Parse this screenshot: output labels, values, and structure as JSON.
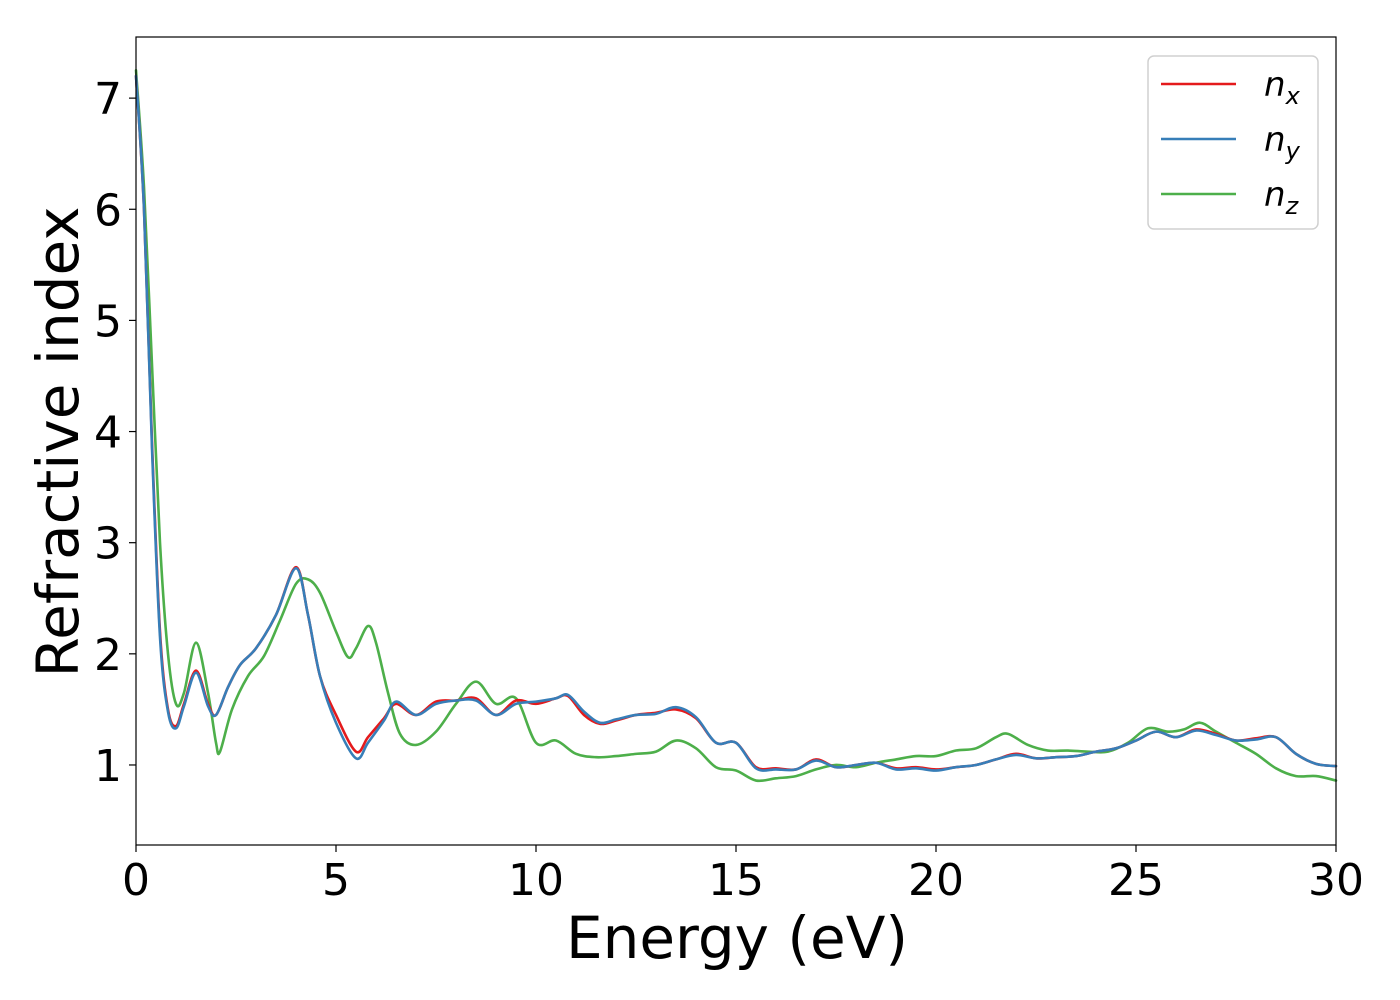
{
  "chart_data": {
    "type": "line",
    "xlabel": "Energy (eV)",
    "ylabel": "Refractive index",
    "xlim": [
      0,
      30
    ],
    "ylim": [
      0.28,
      7.55
    ],
    "xticks": [
      "0",
      "5",
      "10",
      "15",
      "20",
      "25",
      "30"
    ],
    "yticks": [
      "1",
      "2",
      "3",
      "4",
      "5",
      "6",
      "7"
    ],
    "grid": false,
    "legend_position": "top-right",
    "series": [
      {
        "name": "n_x",
        "label_base": "n",
        "label_sub": "x",
        "color": "#e41a1c",
        "x": [
          0,
          0.2,
          0.4,
          0.6,
          0.8,
          1.0,
          1.2,
          1.5,
          1.8,
          2.0,
          2.3,
          2.6,
          3.0,
          3.5,
          4.0,
          4.3,
          4.6,
          5.0,
          5.5,
          5.8,
          6.2,
          6.5,
          7.0,
          7.5,
          8.0,
          8.5,
          9.0,
          9.5,
          10.0,
          10.5,
          10.8,
          11.2,
          11.6,
          12.0,
          12.5,
          13.0,
          13.5,
          14.0,
          14.5,
          15.0,
          15.5,
          16.0,
          16.5,
          17.0,
          17.5,
          18.0,
          18.5,
          19.0,
          19.5,
          20.0,
          20.5,
          21.0,
          21.5,
          22.0,
          22.5,
          23.0,
          23.5,
          24.0,
          24.5,
          25.0,
          25.5,
          26.0,
          26.5,
          27.0,
          27.5,
          28.0,
          28.5,
          29.0,
          29.5,
          30.0
        ],
        "y": [
          7.2,
          6.0,
          3.9,
          2.2,
          1.5,
          1.35,
          1.55,
          1.85,
          1.55,
          1.45,
          1.7,
          1.9,
          2.05,
          2.35,
          2.78,
          2.35,
          1.8,
          1.45,
          1.12,
          1.25,
          1.42,
          1.55,
          1.45,
          1.57,
          1.58,
          1.6,
          1.45,
          1.58,
          1.55,
          1.6,
          1.62,
          1.45,
          1.37,
          1.4,
          1.45,
          1.47,
          1.5,
          1.42,
          1.2,
          1.2,
          0.98,
          0.97,
          0.96,
          1.05,
          0.98,
          1.0,
          1.02,
          0.97,
          0.98,
          0.96,
          0.98,
          1.0,
          1.05,
          1.1,
          1.06,
          1.07,
          1.08,
          1.12,
          1.15,
          1.22,
          1.3,
          1.25,
          1.32,
          1.28,
          1.22,
          1.24,
          1.25,
          1.1,
          1.01,
          0.99
        ]
      },
      {
        "name": "n_y",
        "label_base": "n",
        "label_sub": "y",
        "color": "#377eb8",
        "x": [
          0,
          0.2,
          0.4,
          0.6,
          0.8,
          1.0,
          1.2,
          1.5,
          1.8,
          2.0,
          2.3,
          2.6,
          3.0,
          3.5,
          4.0,
          4.3,
          4.6,
          5.0,
          5.5,
          5.8,
          6.2,
          6.5,
          7.0,
          7.5,
          8.0,
          8.5,
          9.0,
          9.5,
          10.0,
          10.5,
          10.8,
          11.2,
          11.6,
          12.0,
          12.5,
          13.0,
          13.5,
          14.0,
          14.5,
          15.0,
          15.5,
          16.0,
          16.5,
          17.0,
          17.5,
          18.0,
          18.5,
          19.0,
          19.5,
          20.0,
          20.5,
          21.0,
          21.5,
          22.0,
          22.5,
          23.0,
          23.5,
          24.0,
          24.5,
          25.0,
          25.5,
          26.0,
          26.5,
          27.0,
          27.5,
          28.0,
          28.5,
          29.0,
          29.5,
          30.0
        ],
        "y": [
          7.2,
          6.0,
          3.85,
          2.15,
          1.48,
          1.33,
          1.53,
          1.83,
          1.53,
          1.45,
          1.7,
          1.9,
          2.05,
          2.35,
          2.77,
          2.35,
          1.8,
          1.38,
          1.06,
          1.2,
          1.4,
          1.57,
          1.45,
          1.55,
          1.58,
          1.58,
          1.45,
          1.55,
          1.57,
          1.6,
          1.63,
          1.48,
          1.38,
          1.41,
          1.45,
          1.46,
          1.52,
          1.43,
          1.2,
          1.2,
          0.97,
          0.96,
          0.96,
          1.04,
          0.98,
          1.0,
          1.02,
          0.96,
          0.97,
          0.95,
          0.98,
          1.0,
          1.05,
          1.09,
          1.06,
          1.07,
          1.08,
          1.12,
          1.15,
          1.22,
          1.3,
          1.25,
          1.31,
          1.27,
          1.22,
          1.23,
          1.25,
          1.1,
          1.01,
          0.99
        ]
      },
      {
        "name": "n_z",
        "label_base": "n",
        "label_sub": "z",
        "color": "#4daf4a",
        "x": [
          0,
          0.2,
          0.4,
          0.6,
          0.8,
          1.0,
          1.2,
          1.5,
          1.8,
          2.0,
          2.1,
          2.4,
          2.8,
          3.2,
          3.6,
          4.0,
          4.3,
          4.6,
          5.0,
          5.3,
          5.5,
          5.8,
          6.0,
          6.3,
          6.6,
          7.0,
          7.5,
          8.0,
          8.5,
          9.0,
          9.5,
          10.0,
          10.5,
          11.0,
          11.5,
          12.0,
          12.5,
          13.0,
          13.5,
          14.0,
          14.5,
          15.0,
          15.5,
          16.0,
          16.5,
          17.0,
          17.5,
          18.0,
          18.5,
          19.0,
          19.5,
          20.0,
          20.5,
          21.0,
          21.5,
          21.8,
          22.3,
          22.8,
          23.3,
          23.8,
          24.3,
          24.8,
          25.3,
          25.8,
          26.2,
          26.6,
          27.0,
          27.5,
          28.0,
          28.5,
          29.0,
          29.5,
          30.0
        ],
        "y": [
          7.25,
          6.2,
          4.6,
          3.0,
          2.0,
          1.55,
          1.65,
          2.1,
          1.65,
          1.2,
          1.12,
          1.5,
          1.8,
          1.98,
          2.3,
          2.63,
          2.67,
          2.55,
          2.2,
          1.97,
          2.05,
          2.25,
          2.1,
          1.65,
          1.28,
          1.18,
          1.3,
          1.55,
          1.75,
          1.55,
          1.6,
          1.2,
          1.22,
          1.1,
          1.07,
          1.08,
          1.1,
          1.12,
          1.22,
          1.15,
          0.98,
          0.95,
          0.86,
          0.88,
          0.9,
          0.96,
          1.0,
          0.98,
          1.02,
          1.05,
          1.08,
          1.08,
          1.13,
          1.15,
          1.25,
          1.28,
          1.18,
          1.13,
          1.13,
          1.12,
          1.12,
          1.2,
          1.33,
          1.3,
          1.32,
          1.38,
          1.3,
          1.2,
          1.1,
          0.97,
          0.9,
          0.9,
          0.86
        ]
      }
    ]
  }
}
